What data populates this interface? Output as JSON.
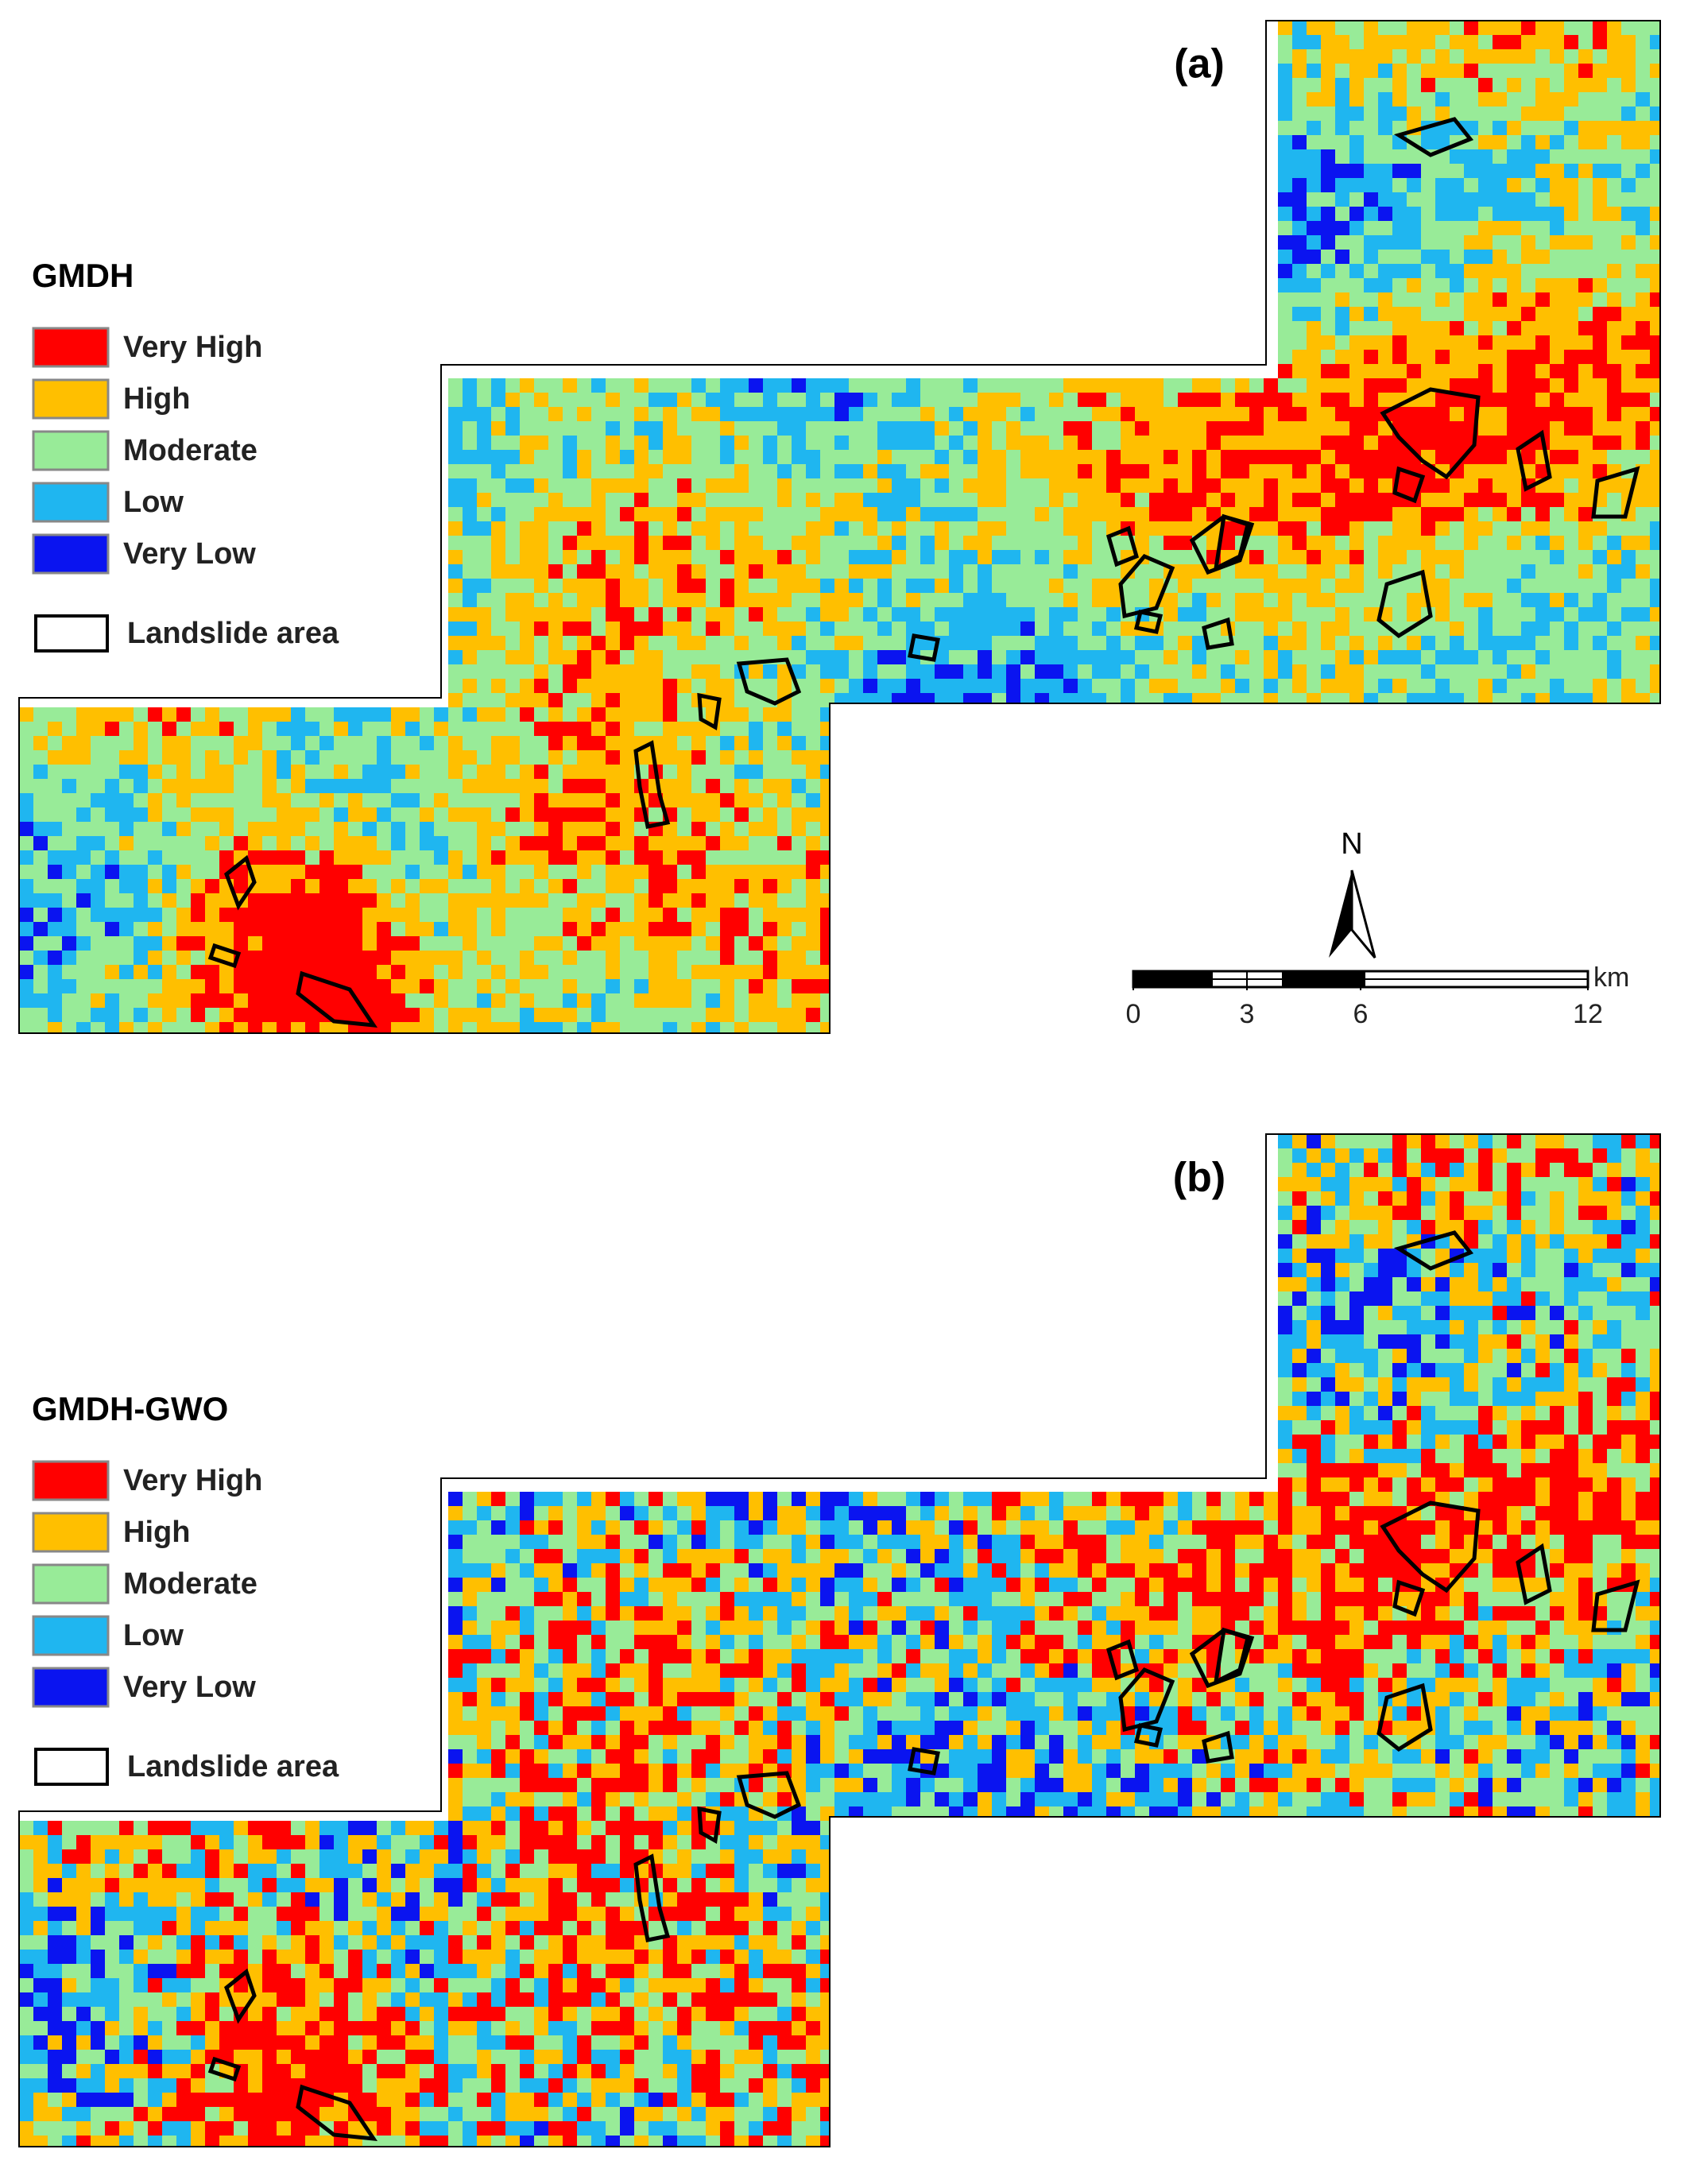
{
  "panels": [
    {
      "label": "(a)",
      "legend": {
        "title": "GMDH",
        "items": [
          {
            "label": "Very High",
            "color": "#ff0000"
          },
          {
            "label": "High",
            "color": "#ffbf00"
          },
          {
            "label": "Moderate",
            "color": "#98eb98"
          },
          {
            "label": "Low",
            "color": "#1fb6f0"
          },
          {
            "label": "Very Low",
            "color": "#0a14f0"
          }
        ],
        "landslide": "Landslide area"
      }
    },
    {
      "label": "(b)",
      "legend": {
        "title": "GMDH-GWO",
        "items": [
          {
            "label": "Very High",
            "color": "#ff0000"
          },
          {
            "label": "High",
            "color": "#ffbf00"
          },
          {
            "label": "Moderate",
            "color": "#98eb98"
          },
          {
            "label": "Low",
            "color": "#1fb6f0"
          },
          {
            "label": "Very Low",
            "color": "#0a14f0"
          }
        ],
        "landslide": "Landslide area"
      }
    }
  ],
  "north": "N",
  "scale_bar": {
    "ticks": [
      0,
      3,
      6,
      12
    ],
    "unit": "km"
  }
}
